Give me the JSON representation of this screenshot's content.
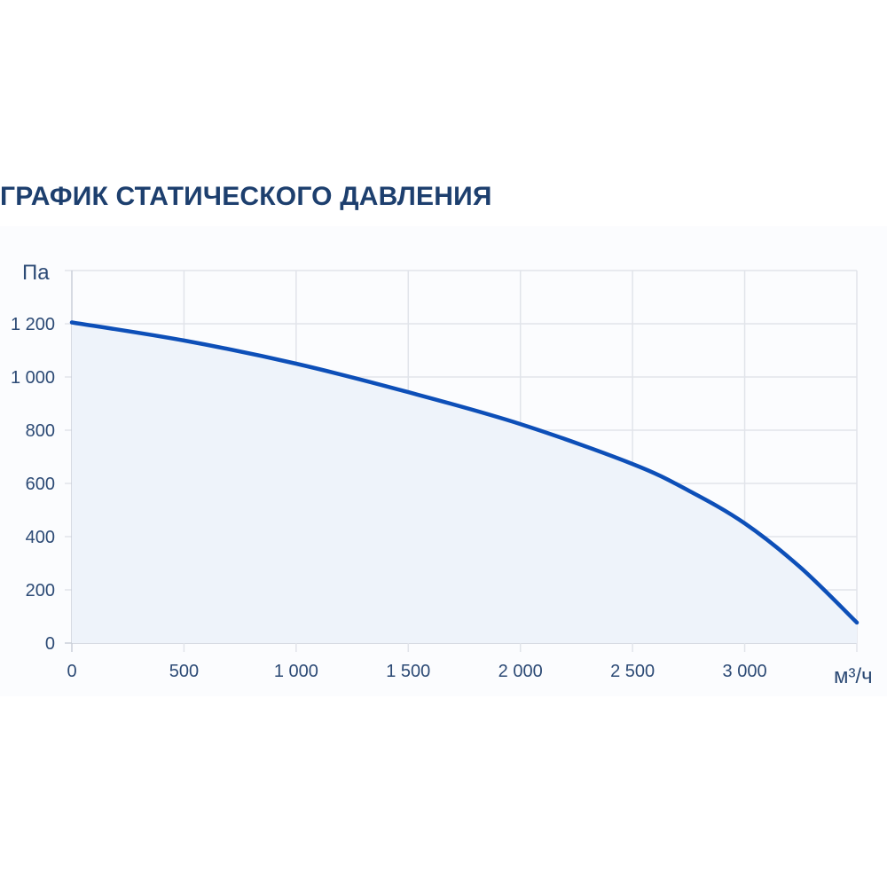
{
  "chart_data": {
    "type": "area",
    "title": "ГРАФИК СТАТИЧЕСКОГО ДАВЛЕНИЯ",
    "xlabel": "м³/ч",
    "ylabel": "Па",
    "xlim": [
      0,
      3500
    ],
    "ylim": [
      0,
      1400
    ],
    "x_ticks": [
      0,
      500,
      1000,
      1500,
      2000,
      2500,
      3000,
      3500
    ],
    "x_tick_labels": [
      "0",
      "500",
      "1 000",
      "1 500",
      "2 000",
      "2 500",
      "3 000"
    ],
    "y_ticks": [
      0,
      200,
      400,
      600,
      800,
      1000,
      1200,
      1400
    ],
    "y_tick_labels": [
      "0",
      "200",
      "400",
      "600",
      "800",
      "1 000",
      "1 200"
    ],
    "grid": true,
    "series": [
      {
        "x": [
          0,
          500,
          1000,
          1500,
          2000,
          2500,
          2750,
          3000,
          3250,
          3500
        ],
        "y": [
          1205,
          1137,
          1050,
          943,
          823,
          673,
          573,
          450,
          283,
          77
        ],
        "color": "#0d4fb8",
        "fill": "#eef3fa"
      }
    ]
  }
}
